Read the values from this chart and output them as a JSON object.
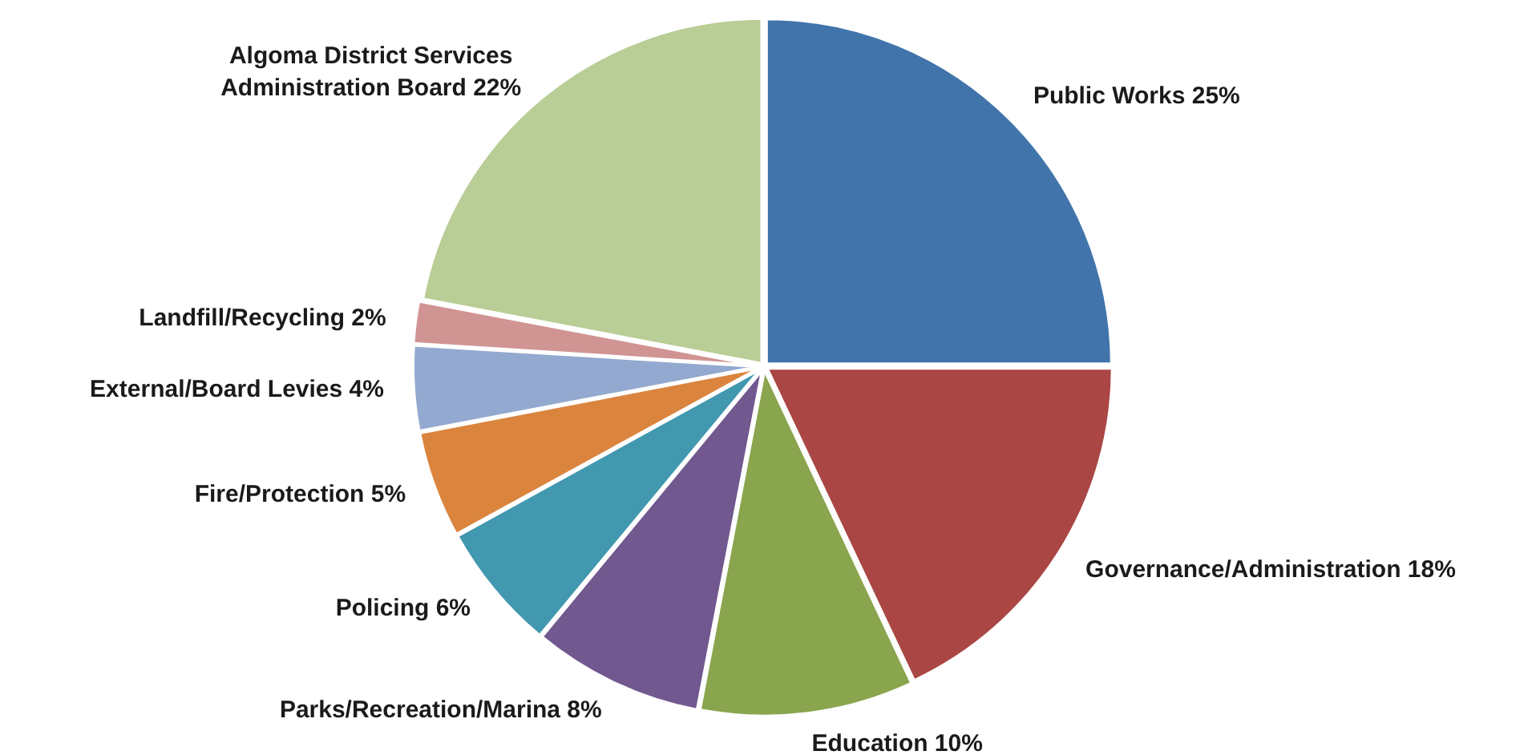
{
  "chart_data": {
    "type": "pie",
    "categories": [
      "Public Works",
      "Governance/Administration",
      "Education",
      "Parks/Recreation/Marina",
      "Policing",
      "Fire/Protection",
      "External/Board Levies",
      "Landfill/Recycling",
      "Algoma District Services Administration Board"
    ],
    "values": [
      25,
      18,
      10,
      8,
      6,
      5,
      4,
      2,
      22
    ],
    "value_labels": [
      "25%",
      "18%",
      "10%",
      "8%",
      "6%",
      "5%",
      "4%",
      "2%",
      "22%"
    ],
    "colors": [
      "#4174aa",
      "#aa4643",
      "#89a54e",
      "#71588f",
      "#4198af",
      "#db843d",
      "#93a9cf",
      "#d09493",
      "#b9cd96"
    ],
    "legend": false
  }
}
